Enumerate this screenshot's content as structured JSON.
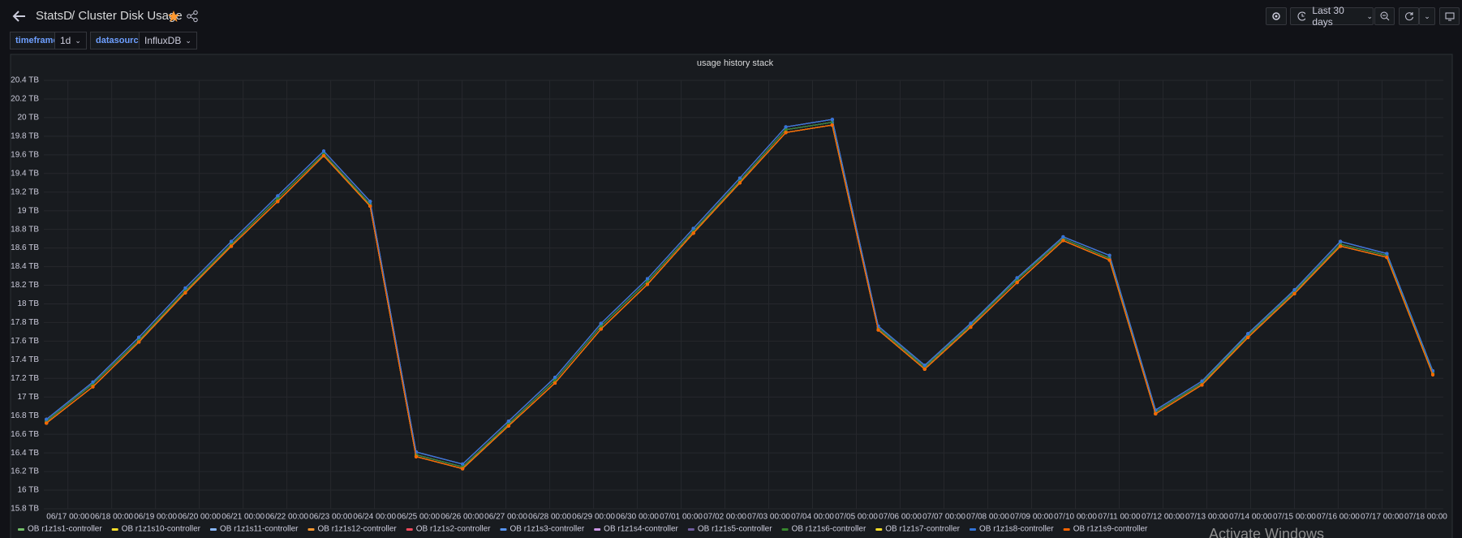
{
  "header": {
    "title": "StatsD",
    "subtitle": "/ Cluster Disk Usage",
    "time_range": "Last 30 days"
  },
  "variables": [
    {
      "label": "timeframe",
      "value": "1d"
    },
    {
      "label": "datasource",
      "value": "InfluxDB"
    }
  ],
  "watermark": "Activate Windows",
  "chart_data": {
    "type": "line",
    "title": "usage history stack",
    "grid": true,
    "legend": "bottom",
    "x": [
      -0.49,
      0.57,
      1.62,
      2.68,
      3.73,
      4.79,
      5.84,
      6.9,
      7.95,
      9.01,
      10.06,
      11.12,
      12.17,
      13.23,
      14.28,
      15.34,
      16.39,
      17.45,
      18.5,
      19.56,
      20.61,
      21.67,
      22.72,
      23.78,
      24.83,
      25.89,
      26.94,
      28.0,
      29.05,
      30.11,
      31.16
    ],
    "xlim": [
      -0.55,
      31.4
    ],
    "xticks": [
      {
        "value": 0,
        "label": "06/17 00:00"
      },
      {
        "value": 1,
        "label": "06/18 00:00"
      },
      {
        "value": 2,
        "label": "06/19 00:00"
      },
      {
        "value": 3,
        "label": "06/20 00:00"
      },
      {
        "value": 4,
        "label": "06/21 00:00"
      },
      {
        "value": 5,
        "label": "06/22 00:00"
      },
      {
        "value": 6,
        "label": "06/23 00:00"
      },
      {
        "value": 7,
        "label": "06/24 00:00"
      },
      {
        "value": 8,
        "label": "06/25 00:00"
      },
      {
        "value": 9,
        "label": "06/26 00:00"
      },
      {
        "value": 10,
        "label": "06/27 00:00"
      },
      {
        "value": 11,
        "label": "06/28 00:00"
      },
      {
        "value": 12,
        "label": "06/29 00:00"
      },
      {
        "value": 13,
        "label": "06/30 00:00"
      },
      {
        "value": 14,
        "label": "07/01 00:00"
      },
      {
        "value": 15,
        "label": "07/02 00:00"
      },
      {
        "value": 16,
        "label": "07/03 00:00"
      },
      {
        "value": 17,
        "label": "07/04 00:00"
      },
      {
        "value": 18,
        "label": "07/05 00:00"
      },
      {
        "value": 19,
        "label": "07/06 00:00"
      },
      {
        "value": 20,
        "label": "07/07 00:00"
      },
      {
        "value": 21,
        "label": "07/08 00:00"
      },
      {
        "value": 22,
        "label": "07/09 00:00"
      },
      {
        "value": 23,
        "label": "07/10 00:00"
      },
      {
        "value": 24,
        "label": "07/11 00:00"
      },
      {
        "value": 25,
        "label": "07/12 00:00"
      },
      {
        "value": 26,
        "label": "07/13 00:00"
      },
      {
        "value": 27,
        "label": "07/14 00:00"
      },
      {
        "value": 28,
        "label": "07/15 00:00"
      },
      {
        "value": 29,
        "label": "07/16 00:00"
      },
      {
        "value": 30,
        "label": "07/17 00:00"
      },
      {
        "value": 31,
        "label": "07/18 00:00"
      }
    ],
    "ylim": [
      15.8,
      20.4
    ],
    "yticks": [
      {
        "value": 15.8,
        "label": "15.8 TB"
      },
      {
        "value": 16,
        "label": "16 TB"
      },
      {
        "value": 16.2,
        "label": "16.2 TB"
      },
      {
        "value": 16.4,
        "label": "16.4 TB"
      },
      {
        "value": 16.6,
        "label": "16.6 TB"
      },
      {
        "value": 16.8,
        "label": "16.8 TB"
      },
      {
        "value": 17,
        "label": "17 TB"
      },
      {
        "value": 17.2,
        "label": "17.2 TB"
      },
      {
        "value": 17.4,
        "label": "17.4 TB"
      },
      {
        "value": 17.6,
        "label": "17.6 TB"
      },
      {
        "value": 17.8,
        "label": "17.8 TB"
      },
      {
        "value": 18,
        "label": "18 TB"
      },
      {
        "value": 18.2,
        "label": "18.2 TB"
      },
      {
        "value": 18.4,
        "label": "18.4 TB"
      },
      {
        "value": 18.6,
        "label": "18.6 TB"
      },
      {
        "value": 18.8,
        "label": "18.8 TB"
      },
      {
        "value": 19,
        "label": "19 TB"
      },
      {
        "value": 19.2,
        "label": "19.2 TB"
      },
      {
        "value": 19.4,
        "label": "19.4 TB"
      },
      {
        "value": 19.6,
        "label": "19.6 TB"
      },
      {
        "value": 19.8,
        "label": "19.8 TB"
      },
      {
        "value": 20,
        "label": "20 TB"
      },
      {
        "value": 20.2,
        "label": "20.2 TB"
      },
      {
        "value": 20.4,
        "label": "20.4 TB"
      }
    ],
    "series": [
      {
        "name": "OB r1z1s1-controller",
        "color": "#73bf69",
        "values": [
          16.74,
          17.14,
          17.61,
          18.14,
          18.64,
          19.13,
          19.61,
          19.07,
          16.38,
          16.25,
          16.71,
          17.18,
          17.76,
          18.24,
          18.78,
          19.32,
          19.87,
          19.95,
          17.74,
          17.32,
          17.77,
          18.26,
          18.7,
          18.49,
          16.84,
          17.15,
          17.66,
          18.13,
          18.64,
          18.52,
          17.26
        ]
      },
      {
        "name": "OB r1z1s10-controller",
        "color": "#fade2a",
        "values": [
          16.72,
          17.11,
          17.59,
          18.12,
          18.62,
          19.1,
          19.59,
          19.05,
          16.36,
          16.23,
          16.69,
          17.15,
          17.73,
          18.21,
          18.76,
          19.3,
          19.84,
          19.92,
          17.72,
          17.3,
          17.75,
          18.23,
          18.68,
          18.47,
          16.82,
          17.13,
          17.64,
          18.11,
          18.62,
          18.5,
          17.24
        ]
      },
      {
        "name": "OB r1z1s11-controller",
        "color": "#8ab8ff",
        "values": [
          16.74,
          17.14,
          17.61,
          18.14,
          18.64,
          19.13,
          19.61,
          19.07,
          16.38,
          16.25,
          16.71,
          17.18,
          17.76,
          18.24,
          18.78,
          19.32,
          19.87,
          19.95,
          17.74,
          17.32,
          17.77,
          18.26,
          18.7,
          18.49,
          16.84,
          17.15,
          17.66,
          18.13,
          18.64,
          18.52,
          17.26
        ]
      },
      {
        "name": "OB r1z1s12-controller",
        "color": "#ff9830",
        "values": [
          16.72,
          17.11,
          17.59,
          18.12,
          18.62,
          19.1,
          19.59,
          19.05,
          16.36,
          16.23,
          16.69,
          17.15,
          17.73,
          18.21,
          18.76,
          19.3,
          19.84,
          19.92,
          17.72,
          17.3,
          17.75,
          18.23,
          18.68,
          18.47,
          16.82,
          17.13,
          17.64,
          18.11,
          18.62,
          18.5,
          17.24
        ]
      },
      {
        "name": "OB r1z1s2-controller",
        "color": "#f2495c",
        "values": [
          16.72,
          17.11,
          17.59,
          18.12,
          18.62,
          19.1,
          19.59,
          19.05,
          16.36,
          16.23,
          16.69,
          17.15,
          17.73,
          18.21,
          18.76,
          19.3,
          19.84,
          19.92,
          17.72,
          17.3,
          17.75,
          18.23,
          18.68,
          18.47,
          16.82,
          17.13,
          17.64,
          18.11,
          18.62,
          18.5,
          17.24
        ]
      },
      {
        "name": "OB r1z1s3-controller",
        "color": "#5794f2",
        "values": [
          16.76,
          17.16,
          17.64,
          18.17,
          18.67,
          19.16,
          19.64,
          19.1,
          16.41,
          16.28,
          16.74,
          17.21,
          17.79,
          18.27,
          18.81,
          19.35,
          19.9,
          19.98,
          17.76,
          17.34,
          17.79,
          18.28,
          18.72,
          18.52,
          16.86,
          17.17,
          17.68,
          18.15,
          18.67,
          18.54,
          17.28
        ]
      },
      {
        "name": "OB r1z1s4-controller",
        "color": "#ca95e5",
        "values": [
          16.76,
          17.16,
          17.64,
          18.17,
          18.67,
          19.16,
          19.64,
          19.1,
          16.41,
          16.28,
          16.74,
          17.21,
          17.79,
          18.27,
          18.81,
          19.35,
          19.9,
          19.98,
          17.76,
          17.34,
          17.79,
          18.28,
          18.72,
          18.52,
          16.86,
          17.17,
          17.68,
          18.15,
          18.67,
          18.54,
          17.28
        ]
      },
      {
        "name": "OB r1z1s5-controller",
        "color": "#705da0",
        "values": [
          16.74,
          17.14,
          17.61,
          18.14,
          18.64,
          19.13,
          19.61,
          19.07,
          16.38,
          16.25,
          16.71,
          17.18,
          17.76,
          18.24,
          18.78,
          19.32,
          19.87,
          19.95,
          17.74,
          17.32,
          17.77,
          18.26,
          18.7,
          18.49,
          16.84,
          17.15,
          17.66,
          18.13,
          18.64,
          18.52,
          17.26
        ]
      },
      {
        "name": "OB r1z1s6-controller",
        "color": "#37872d",
        "values": [
          16.74,
          17.14,
          17.61,
          18.14,
          18.64,
          19.13,
          19.61,
          19.07,
          16.38,
          16.25,
          16.71,
          17.18,
          17.76,
          18.24,
          18.78,
          19.32,
          19.87,
          19.95,
          17.74,
          17.32,
          17.77,
          18.26,
          18.7,
          18.49,
          16.84,
          17.15,
          17.66,
          18.13,
          18.64,
          18.52,
          17.26
        ]
      },
      {
        "name": "OB r1z1s7-controller",
        "color": "#fade2a",
        "values": [
          16.72,
          17.11,
          17.59,
          18.12,
          18.62,
          19.1,
          19.59,
          19.05,
          16.36,
          16.23,
          16.69,
          17.15,
          17.73,
          18.21,
          18.76,
          19.3,
          19.84,
          19.92,
          17.72,
          17.3,
          17.75,
          18.23,
          18.68,
          18.47,
          16.82,
          17.13,
          17.64,
          18.11,
          18.62,
          18.5,
          17.24
        ]
      },
      {
        "name": "OB r1z1s8-controller",
        "color": "#3274d9",
        "values": [
          16.76,
          17.16,
          17.64,
          18.17,
          18.67,
          19.16,
          19.64,
          19.1,
          16.41,
          16.28,
          16.74,
          17.21,
          17.79,
          18.27,
          18.81,
          19.35,
          19.9,
          19.98,
          17.76,
          17.34,
          17.79,
          18.28,
          18.72,
          18.52,
          16.86,
          17.17,
          17.68,
          18.15,
          18.67,
          18.54,
          17.28
        ]
      },
      {
        "name": "OB r1z1s9-controller",
        "color": "#fa6400",
        "values": [
          16.72,
          17.11,
          17.59,
          18.12,
          18.62,
          19.1,
          19.59,
          19.05,
          16.36,
          16.23,
          16.69,
          17.15,
          17.73,
          18.21,
          18.76,
          19.3,
          19.84,
          19.92,
          17.72,
          17.3,
          17.75,
          18.23,
          18.68,
          18.47,
          16.82,
          17.13,
          17.64,
          18.11,
          18.62,
          18.5,
          17.24
        ]
      }
    ]
  }
}
